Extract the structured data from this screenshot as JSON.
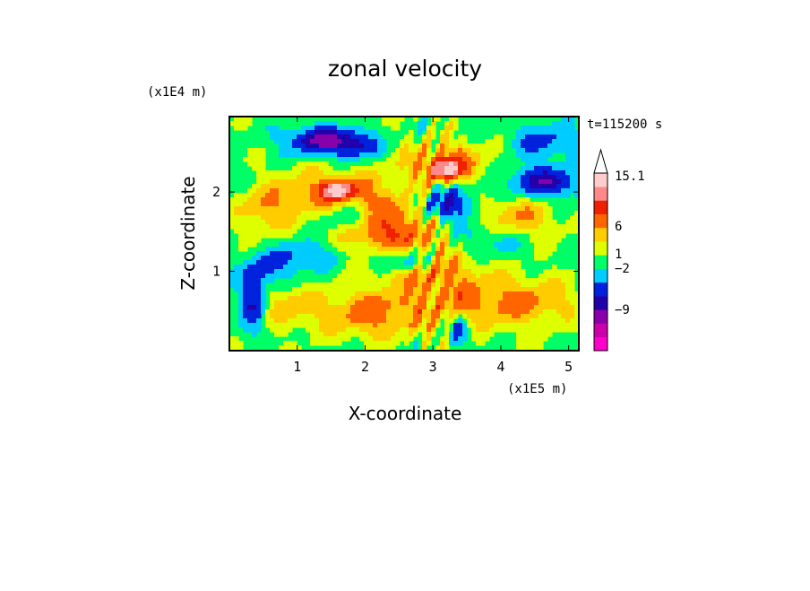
{
  "chart_data": {
    "type": "heatmap",
    "title": "zonal velocity",
    "xlabel": "X-coordinate",
    "ylabel": "Z-coordinate",
    "x_unit": "(x1E5 m)",
    "y_unit": "(x1E4 m)",
    "time_label": "t=115200 s",
    "xlim": [
      0,
      5.15
    ],
    "ylim": [
      0,
      2.95
    ],
    "x_ticks": [
      1,
      2,
      3,
      4,
      5
    ],
    "y_ticks": [
      1,
      2
    ],
    "colorbar": {
      "labels": [
        "15.1",
        "6",
        "1",
        "−2",
        "−9"
      ],
      "colors": [
        "#ff00cc",
        "#cc00aa",
        "#8800aa",
        "#2200aa",
        "#0022dd",
        "#00ccff",
        "#00ff66",
        "#ddff00",
        "#ffcc00",
        "#ff6600",
        "#ee2200",
        "#ff8888",
        "#ffcccc"
      ],
      "top_arrow": true
    }
  },
  "colors": {
    "field_background": "#00ff66",
    "frame": "#000000"
  }
}
